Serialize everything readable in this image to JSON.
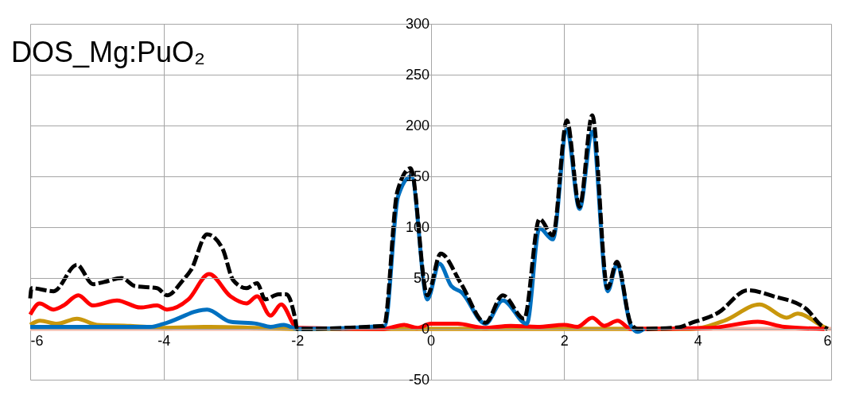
{
  "chart_data": {
    "type": "line",
    "title": "DOS_Mg:PuO₂",
    "xlim": [
      -6,
      6
    ],
    "xticks": [
      -6,
      -4,
      -2,
      0,
      2,
      4,
      6
    ],
    "ylim": [
      -50,
      300
    ],
    "yticks": [
      -50,
      0,
      50,
      100,
      150,
      200,
      250,
      300
    ],
    "grid": true,
    "legend": false,
    "marker": "none",
    "series": [
      {
        "color": "#f4b8a8",
        "line_style": "solid",
        "x": [
          -6,
          6
        ],
        "values": [
          0,
          0
        ]
      },
      {
        "color": "#c9970c",
        "line_style": "solid",
        "x": [
          -6,
          -5.85,
          -5.6,
          -5.3,
          -5.0,
          -4.5,
          -4,
          -3.3,
          -2.6,
          -2,
          3.9,
          4.4,
          4.93,
          5.33,
          5.5,
          5.86,
          5.95
        ],
        "values": [
          4,
          8,
          5,
          10,
          4,
          3,
          1,
          2,
          1,
          0,
          0,
          8,
          24,
          11,
          15,
          3,
          0
        ]
      },
      {
        "color": "#ff0000",
        "line_style": "solid",
        "x": [
          -6,
          -5.86,
          -5.65,
          -5.5,
          -5.28,
          -5.06,
          -4.7,
          -4.35,
          -4.1,
          -3.95,
          -3.63,
          -3.32,
          -3.0,
          -2.76,
          -2.6,
          -2.4,
          -2.24,
          -2.0,
          -0.7,
          -0.4,
          -0.2,
          0,
          0.4,
          0.8,
          1.2,
          1.6,
          2.0,
          2.2,
          2.42,
          2.6,
          2.8,
          3.0,
          4.2,
          4.9,
          5.3,
          5.9
        ],
        "values": [
          14,
          25,
          19,
          23,
          33,
          23,
          28,
          21,
          23,
          19,
          29,
          54,
          32,
          25,
          32,
          13,
          24,
          1,
          0,
          4,
          1,
          5,
          5,
          1,
          3,
          2,
          4,
          2,
          11,
          3,
          8,
          0,
          1,
          7,
          2,
          0
        ]
      },
      {
        "color": "#0070c0",
        "line_style": "solid",
        "x": [
          -6,
          -4.2,
          -4,
          -3.35,
          -3,
          -2.6,
          -2.4,
          -2.2,
          -2,
          -0.69,
          -0.49,
          -0.29,
          -0.05,
          0.13,
          0.31,
          0.46,
          0.82,
          1.08,
          1.44,
          1.63,
          1.83,
          2.04,
          2.23,
          2.42,
          2.65,
          2.79,
          3.0,
          3.1,
          3.2
        ],
        "values": [
          2,
          2,
          5,
          19,
          7,
          5,
          2,
          4,
          0,
          3,
          130,
          150,
          29,
          64,
          42,
          36,
          5,
          28,
          5,
          99,
          88,
          196,
          118,
          194,
          37,
          63,
          3,
          -3,
          0
        ]
      },
      {
        "color": "#000000",
        "line_style": "dashed",
        "x": [
          -6,
          -5.98,
          -5.65,
          -5.3,
          -5.06,
          -4.9,
          -4.63,
          -4.43,
          -4.1,
          -3.95,
          -3.71,
          -3.59,
          -3.35,
          -3.12,
          -2.96,
          -2.76,
          -2.6,
          -2.48,
          -2.28,
          -2.16,
          -2.04,
          -2,
          -0.7,
          -0.5,
          -0.3,
          -0.05,
          0.15,
          0.45,
          0.82,
          1.08,
          1.4,
          1.63,
          1.83,
          2.04,
          2.23,
          2.42,
          2.65,
          2.79,
          3.0,
          3.1,
          3.72,
          3.87,
          4.31,
          4.75,
          5.14,
          5.62,
          5.86,
          5.95
        ],
        "values": [
          30,
          40,
          37,
          63,
          44,
          46,
          50,
          42,
          40,
          33,
          48,
          58,
          93,
          79,
          48,
          40,
          45,
          29,
          34,
          34,
          13,
          0,
          3,
          135,
          158,
          33,
          74,
          45,
          6,
          33,
          10,
          108,
          92,
          205,
          120,
          210,
          40,
          66,
          5,
          0,
          1.5,
          5,
          16,
          38,
          32,
          20,
          3,
          0
        ]
      }
    ]
  }
}
